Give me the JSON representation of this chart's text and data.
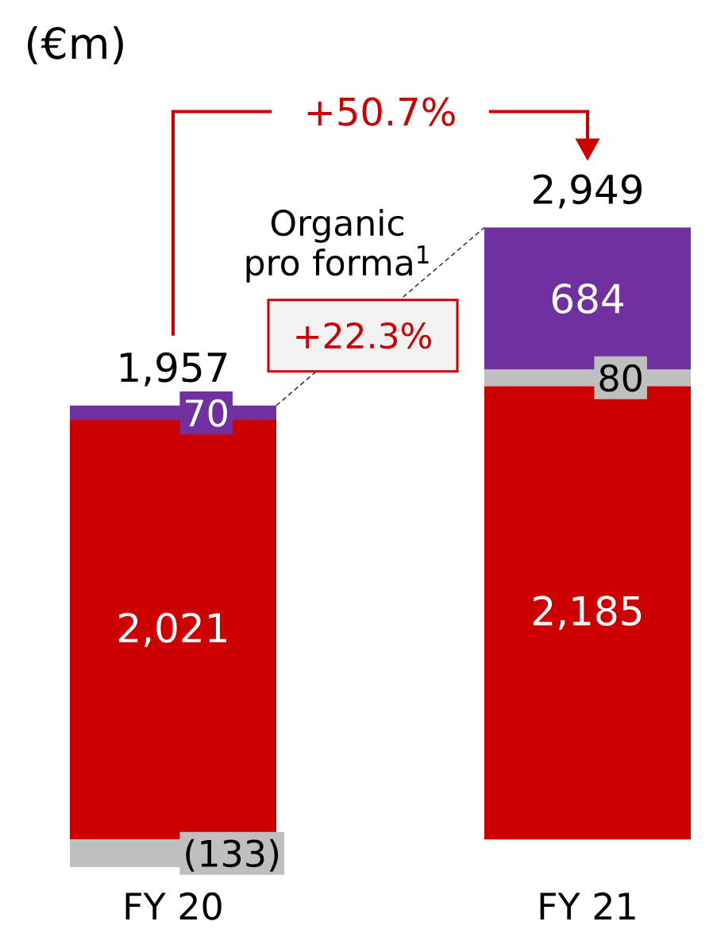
{
  "chart_data": {
    "type": "bar",
    "title": "(€m)",
    "categories": [
      "FY 20",
      "FY 21"
    ],
    "stacked": true,
    "series": [
      {
        "color": "#cc0000",
        "values": [
          2021,
          2185
        ],
        "value_labels": [
          "2,021",
          "2,185"
        ]
      },
      {
        "color": "#bfbfbf",
        "values": [
          -133,
          80
        ],
        "value_labels": [
          "(133)",
          "80"
        ]
      },
      {
        "color": "#7030a0",
        "values": [
          70,
          684
        ],
        "value_labels": [
          "70",
          "684"
        ]
      }
    ],
    "totals": [
      "1,957",
      "2,949"
    ],
    "annotations": [
      "+50.7%",
      "Organic pro forma$^{1}$",
      "+22.3%"
    ]
  }
}
